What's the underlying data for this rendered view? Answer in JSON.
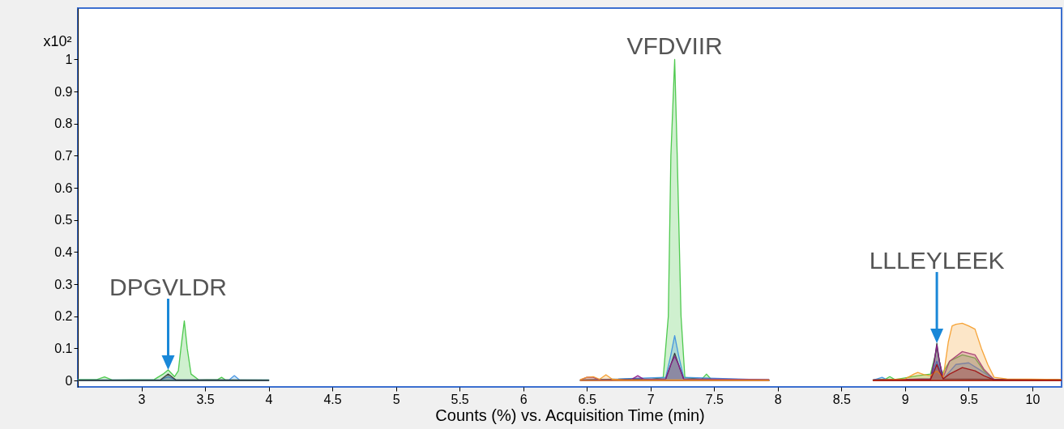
{
  "chart_data": {
    "type": "area",
    "xlabel": "Counts (%) vs. Acquisition Time (min)",
    "ylabel": "x10²",
    "xlim": [
      2.5,
      10.23
    ],
    "ylim": [
      -0.02,
      1.16
    ],
    "xticks": [
      3,
      3.5,
      4,
      4.5,
      5,
      5.5,
      6,
      6.5,
      7,
      7.5,
      8,
      8.5,
      9,
      9.5,
      10
    ],
    "yticks": [
      0,
      0.1,
      0.2,
      0.3,
      0.4,
      0.5,
      0.6,
      0.7,
      0.8,
      0.9,
      1
    ],
    "grid": false,
    "annotations": [
      {
        "text": "DPGVLDR",
        "x": 3.21,
        "y": 0.033
      },
      {
        "text": "VFDVIIR",
        "x": 7.19,
        "y": 1.0
      },
      {
        "text": "LLLEYLEEK",
        "x": 9.25,
        "y": 0.116
      }
    ],
    "series": [
      {
        "color": "#3ec43e",
        "x": [
          2.5,
          2.65,
          2.71,
          2.77,
          3.1,
          3.17,
          3.21,
          3.26,
          3.29,
          3.31,
          3.337,
          3.36,
          3.39,
          3.45,
          3.6,
          3.63,
          3.66,
          4.0,
          5.0,
          6.45,
          7.0,
          7.1,
          7.14,
          7.16,
          7.19,
          7.21,
          7.24,
          7.27,
          7.4,
          7.44,
          7.48,
          7.93,
          8.3,
          8.75,
          8.85,
          8.88,
          8.92,
          9.0,
          9.1,
          9.2,
          9.25,
          9.29,
          9.35,
          9.45,
          9.55,
          9.62,
          9.7,
          10.23
        ],
        "values": [
          0.003,
          0.003,
          0.011,
          0.002,
          0.003,
          0.02,
          0.033,
          0.012,
          0.03,
          0.1,
          0.186,
          0.1,
          0.02,
          0.002,
          0.003,
          0.01,
          0.002,
          0.002,
          null,
          0.002,
          0.003,
          0.01,
          0.2,
          0.7,
          1.0,
          0.7,
          0.2,
          0.01,
          0.003,
          0.02,
          0.002,
          0.002,
          null,
          0.002,
          0.005,
          0.012,
          0.003,
          0.008,
          0.015,
          0.02,
          0.1,
          0.02,
          0.06,
          0.08,
          0.07,
          0.03,
          0.003,
          0.002
        ]
      },
      {
        "color": "#3a8fe0",
        "x": [
          2.5,
          3.15,
          3.21,
          3.27,
          3.69,
          3.73,
          3.77,
          4.0,
          5.0,
          6.45,
          7.12,
          7.16,
          7.19,
          7.22,
          7.26,
          7.93,
          8.3,
          8.75,
          8.82,
          8.86,
          9.2,
          9.25,
          9.3,
          9.4,
          9.5,
          9.6,
          9.7,
          10.23
        ],
        "values": [
          0.002,
          0.002,
          0.012,
          0.002,
          0.002,
          0.015,
          0.002,
          0.002,
          null,
          0.001,
          0.01,
          0.08,
          0.14,
          0.08,
          0.01,
          0.002,
          null,
          0.001,
          0.01,
          0.002,
          0.005,
          0.06,
          0.005,
          0.05,
          0.055,
          0.03,
          0.003,
          0.001
        ]
      },
      {
        "color": "#333333",
        "x": [
          2.5,
          3.15,
          3.21,
          3.27,
          4.0,
          5.0,
          6.45,
          7.12,
          7.16,
          7.19,
          7.22,
          7.26,
          7.93,
          8.3,
          8.75,
          9.2,
          9.23,
          9.25,
          9.27,
          9.3,
          10.23
        ],
        "values": [
          0.001,
          0.002,
          0.02,
          0.002,
          0.001,
          null,
          0.002,
          0.005,
          0.05,
          0.085,
          0.05,
          0.005,
          0.002,
          null,
          0.002,
          0.005,
          0.06,
          0.116,
          0.06,
          0.005,
          0.002
        ]
      },
      {
        "color": "#8b1a8b",
        "x": [
          6.45,
          6.5,
          6.55,
          6.6,
          6.85,
          6.9,
          6.95,
          7.12,
          7.16,
          7.19,
          7.22,
          7.26,
          7.93,
          8.3,
          8.75,
          9.2,
          9.23,
          9.25,
          9.27,
          9.3,
          9.35,
          9.45,
          9.55,
          9.62,
          9.7,
          10.23
        ],
        "values": [
          0.002,
          0.01,
          0.01,
          0.002,
          0.003,
          0.015,
          0.003,
          0.005,
          0.05,
          0.075,
          0.05,
          0.005,
          0.003,
          null,
          0.002,
          0.005,
          0.06,
          0.11,
          0.06,
          0.01,
          0.06,
          0.09,
          0.08,
          0.035,
          0.003,
          0.002
        ]
      },
      {
        "color": "#f59a23",
        "x": [
          6.45,
          6.5,
          6.55,
          6.6,
          6.65,
          6.7,
          6.8,
          7.93,
          8.3,
          8.75,
          9.0,
          9.07,
          9.1,
          9.15,
          9.2,
          9.25,
          9.3,
          9.34,
          9.37,
          9.4,
          9.45,
          9.5,
          9.55,
          9.6,
          9.65,
          9.7,
          9.8,
          10.23
        ],
        "values": [
          0.003,
          0.01,
          0.012,
          0.004,
          0.018,
          0.004,
          0.002,
          0.002,
          null,
          0.001,
          0.005,
          0.02,
          0.025,
          0.018,
          0.015,
          0.03,
          0.01,
          0.12,
          0.17,
          0.175,
          0.178,
          0.17,
          0.16,
          0.1,
          0.05,
          0.01,
          0.005,
          0.003
        ]
      },
      {
        "color": "#a01010",
        "x": [
          8.75,
          9.2,
          9.23,
          9.25,
          9.27,
          9.3,
          9.35,
          9.45,
          9.55,
          9.62,
          9.7,
          10.23
        ],
        "values": [
          0.001,
          0.003,
          0.03,
          0.05,
          0.03,
          0.005,
          0.02,
          0.04,
          0.03,
          0.015,
          0.002,
          0.001
        ]
      }
    ]
  }
}
